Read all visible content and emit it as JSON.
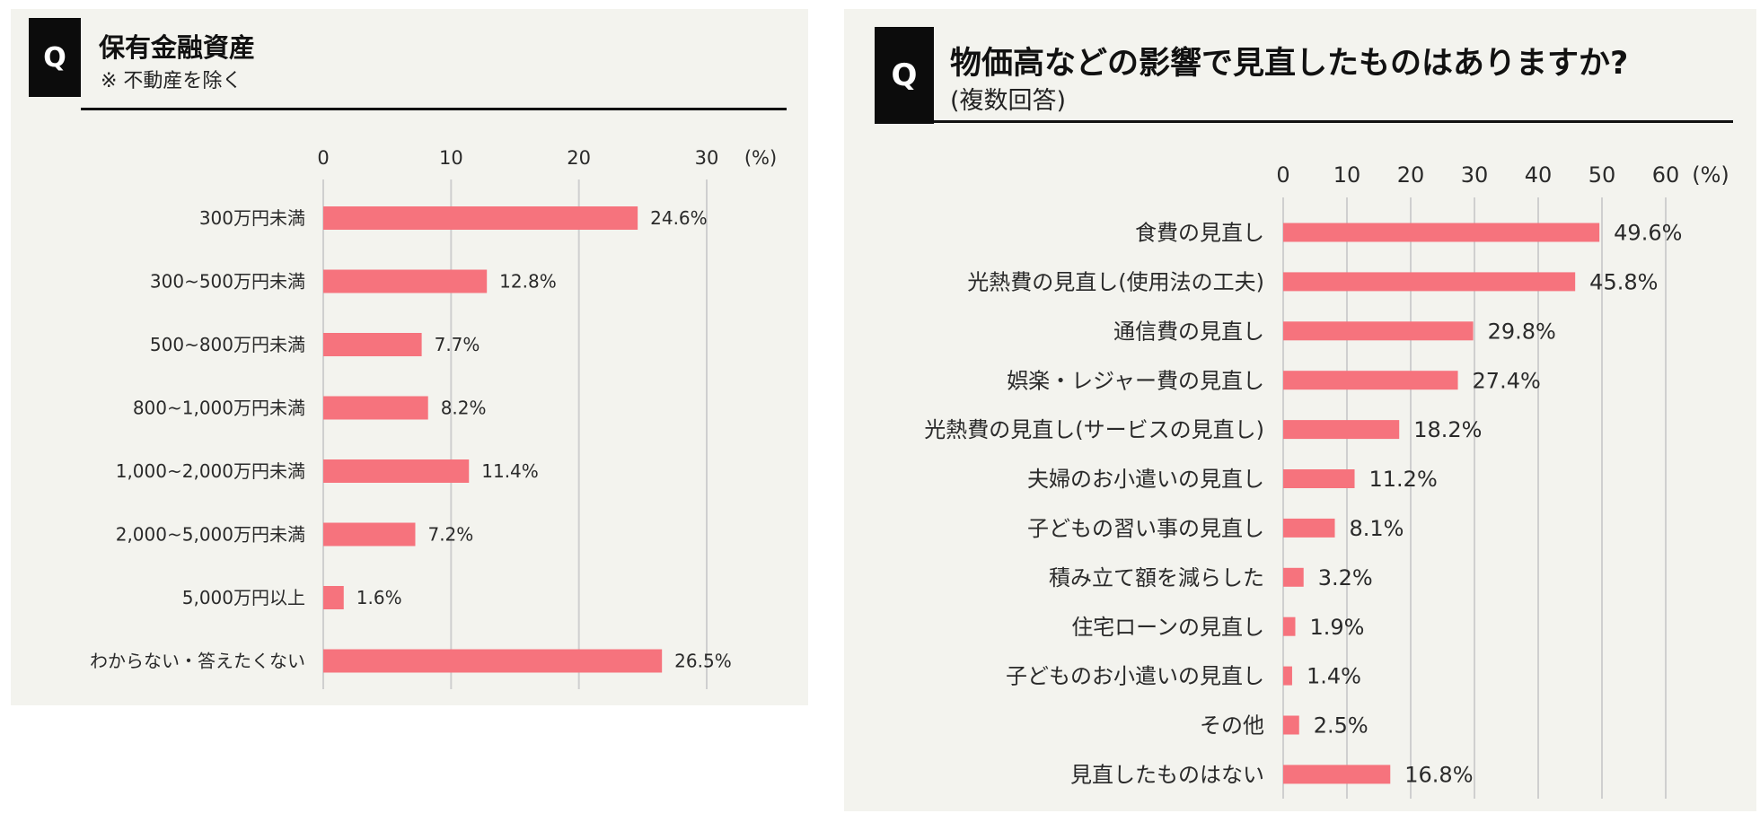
{
  "colors": {
    "bar": "#f6737d",
    "panel_bg": "#f3f3ee",
    "q_box": "#0c0c0c",
    "grid": "#cfcfcf"
  },
  "left": {
    "q_label": "Q",
    "title": "保有金融資産",
    "subtitle": "※ 不動産を除く"
  },
  "right": {
    "q_label": "Q",
    "title": "物価高などの影響で見直したものはありますか?",
    "subtitle": "(複数回答)"
  },
  "chart_data": [
    {
      "type": "bar",
      "orientation": "horizontal",
      "unit": "(%)",
      "xlim": [
        0,
        30
      ],
      "xticks": [
        0,
        10,
        20,
        30
      ],
      "categories": [
        "300万円未満",
        "300~500万円未満",
        "500~800万円未満",
        "800~1,000万円未満",
        "1,000~2,000万円未満",
        "2,000~5,000万円未満",
        "5,000万円以上",
        "わからない・答えたくない"
      ],
      "values": [
        24.6,
        12.8,
        7.7,
        8.2,
        11.4,
        7.2,
        1.6,
        26.5
      ],
      "value_labels": [
        "24.6%",
        "12.8%",
        "7.7%",
        "8.2%",
        "11.4%",
        "7.2%",
        "1.6%",
        "26.5%"
      ],
      "grid": true
    },
    {
      "type": "bar",
      "orientation": "horizontal",
      "unit": "(%)",
      "xlim": [
        0,
        60
      ],
      "xticks": [
        0,
        10,
        20,
        30,
        40,
        50,
        60
      ],
      "categories": [
        "食費の見直し",
        "光熱費の見直し(使用法の工夫)",
        "通信費の見直し",
        "娯楽・レジャー費の見直し",
        "光熱費の見直し(サービスの見直し)",
        "夫婦のお小遣いの見直し",
        "子どもの習い事の見直し",
        "積み立て額を減らした",
        "住宅ローンの見直し",
        "子どものお小遣いの見直し",
        "その他",
        "見直したものはない"
      ],
      "values": [
        49.6,
        45.8,
        29.8,
        27.4,
        18.2,
        11.2,
        8.1,
        3.2,
        1.9,
        1.4,
        2.5,
        16.8
      ],
      "value_labels": [
        "49.6%",
        "45.8%",
        "29.8%",
        "27.4%",
        "18.2%",
        "11.2%",
        "8.1%",
        "3.2%",
        "1.9%",
        "1.4%",
        "2.5%",
        "16.8%"
      ],
      "grid": true
    }
  ]
}
